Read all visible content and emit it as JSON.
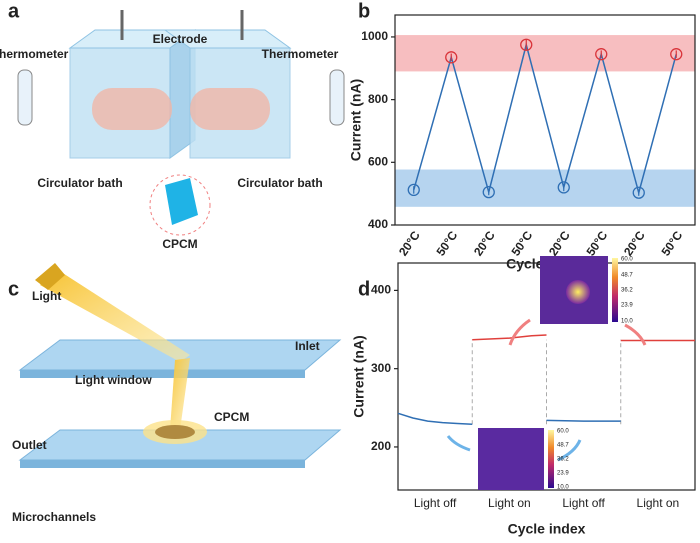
{
  "panels": [
    "a",
    "b",
    "c",
    "d"
  ],
  "illustration_a": {
    "electrode": "Electrode",
    "thermometer_left": "Thermometer",
    "thermometer_right": "Thermometer",
    "bath_left": "Circulator bath",
    "bath_right": "Circulator bath",
    "material": "CPCM"
  },
  "illustration_c": {
    "light": "Light",
    "inlet": "Inlet",
    "window": "Light window",
    "material": "CPCM",
    "outlet": "Outlet",
    "channels": "Microchannels"
  },
  "insets": {
    "colorbar_labels": [
      "60.0",
      "48.7",
      "36.2",
      "23.9",
      "10.0"
    ]
  },
  "chart_data": [
    {
      "type": "line",
      "xlabel": "Cycle index",
      "ylabel": "Current (nA)",
      "categories": [
        "20°C",
        "50°C",
        "20°C",
        "50°C",
        "20°C",
        "50°C",
        "20°C",
        "50°C"
      ],
      "series": [
        {
          "color": "#2f6fb4",
          "values": [
            512,
            935,
            505,
            975,
            520,
            945,
            503,
            945
          ],
          "errors": [
            12,
            12,
            10,
            18,
            12,
            12,
            10,
            12
          ],
          "marker_colors": [
            "#2f6fb4",
            "#d9343a",
            "#2f6fb4",
            "#d9343a",
            "#2f6fb4",
            "#d9343a",
            "#2f6fb4",
            "#d9343a"
          ]
        }
      ],
      "bands": [
        {
          "range": [
            890,
            1006
          ],
          "color": "#f6b3b5"
        },
        {
          "range": [
            458,
            577
          ],
          "color": "#a9cdec"
        }
      ],
      "ylim": [
        400,
        1070
      ],
      "yticks": [
        400,
        600,
        800,
        1000
      ]
    },
    {
      "type": "step",
      "xlabel": "Cycle index",
      "ylabel": "Current (nA)",
      "categories": [
        "Light off",
        "Light on",
        "Light off",
        "Light on"
      ],
      "xlim": [
        0,
        4
      ],
      "series": [
        {
          "color": "#2f6fb4",
          "x": [
            0,
            0.2,
            0.4,
            0.6,
            0.8,
            1,
            1.5,
            2,
            2.5,
            3
          ],
          "values": [
            243,
            237,
            233,
            231,
            230,
            229,
            null,
            234,
            233,
            233
          ]
        },
        {
          "color": "#e0403c",
          "x": [
            1,
            1.5,
            1.8,
            2,
            2.5,
            3,
            3.5,
            4
          ],
          "values": [
            337,
            339,
            342,
            343,
            null,
            336,
            336,
            336
          ]
        }
      ],
      "ylim": [
        145,
        435
      ],
      "yticks": [
        200,
        300,
        400
      ]
    }
  ]
}
